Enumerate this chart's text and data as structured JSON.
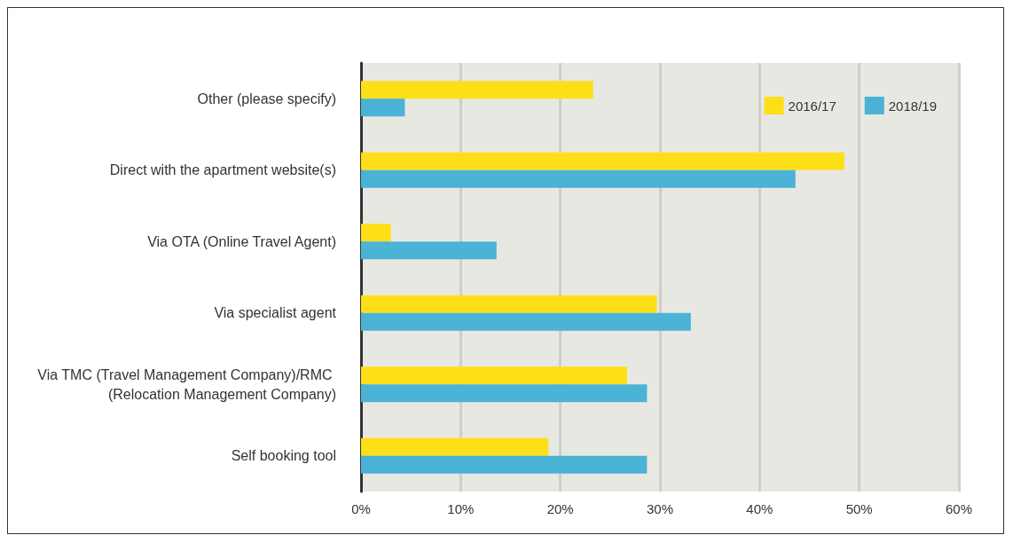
{
  "chart_data": {
    "type": "bar",
    "orientation": "horizontal",
    "categories": [
      "Other (please specify)",
      "Direct with the apartment website(s)",
      "Via OTA (Online Travel Agent)",
      "Via specialist agent",
      "Via TMC (Travel Management Company)/RMC (Relocation Management Company)",
      "Self booking tool"
    ],
    "series": [
      {
        "name": "2016/17",
        "color": "#fddf17",
        "values": [
          23.3,
          48.5,
          3.0,
          29.7,
          26.7,
          18.8
        ]
      },
      {
        "name": "2018/19",
        "color": "#4ab3d6",
        "values": [
          4.4,
          43.6,
          13.6,
          33.1,
          28.7,
          28.7
        ]
      }
    ],
    "xlim": [
      0,
      60
    ],
    "xticks": [
      {
        "value": 0,
        "label": "0%"
      },
      {
        "value": 10,
        "label": "10%"
      },
      {
        "value": 20,
        "label": "20%"
      },
      {
        "value": 30,
        "label": "30%"
      },
      {
        "value": 40,
        "label": "40%"
      },
      {
        "value": 50,
        "label": "50%"
      },
      {
        "value": 60,
        "label": "60%"
      }
    ],
    "grid": "x",
    "legend": "top right"
  }
}
